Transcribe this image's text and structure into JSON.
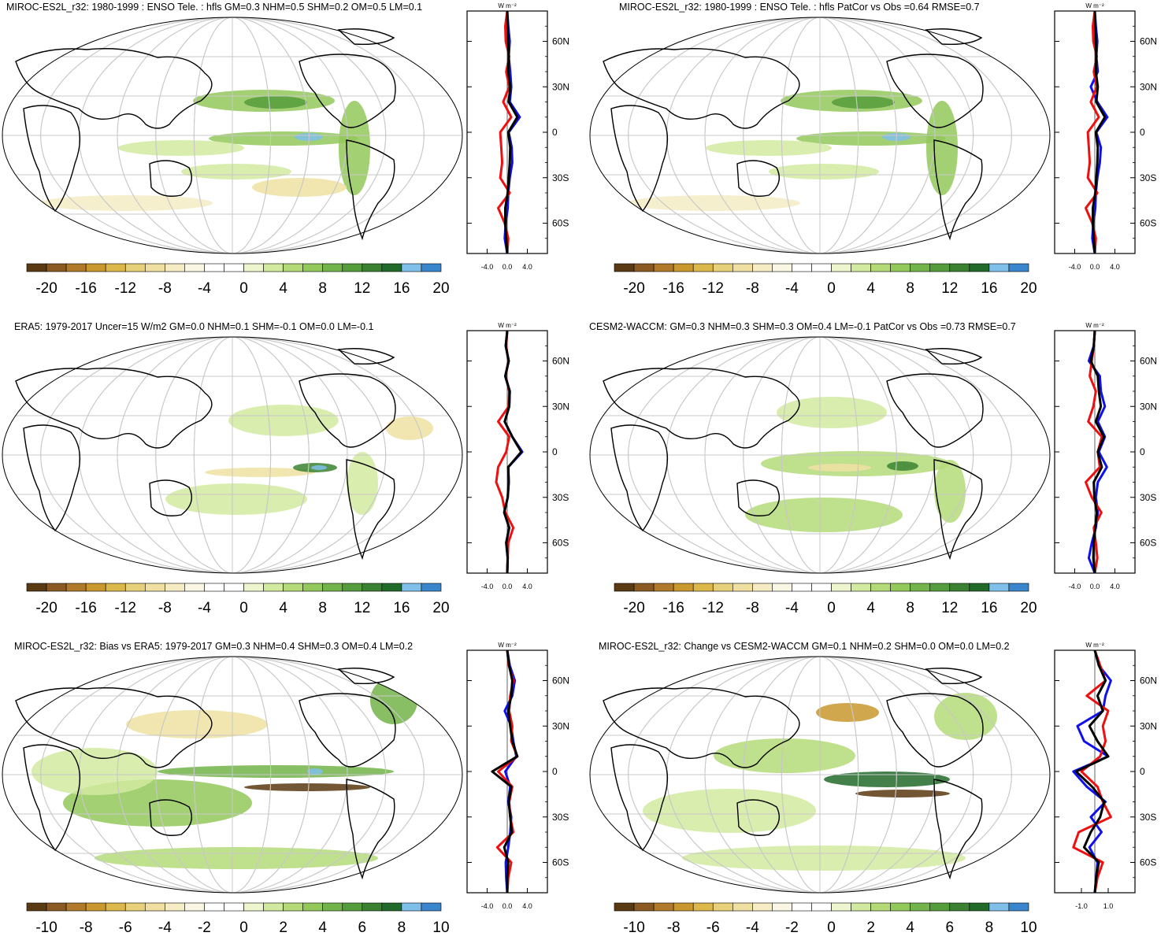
{
  "colors": {
    "palette": [
      "#5a3a12",
      "#8a5a22",
      "#b07a2a",
      "#c9982e",
      "#dcb84a",
      "#e7d07a",
      "#efe0a2",
      "#f5ecc4",
      "#faf6e4",
      "#ffffff",
      "#ffffff",
      "#edf5cf",
      "#d2eaa0",
      "#b4da78",
      "#93c85a",
      "#73b44a",
      "#559c3c",
      "#3a8232",
      "#226a2a",
      "#7ec0ea",
      "#3a86cc"
    ],
    "obs_line": "#1010ee",
    "model_line": "#ee1010",
    "diff_line": "#000000",
    "land_outline": "#000000",
    "graticule": "#c8c8c8"
  },
  "zonal_units": "W m⁻²",
  "lat_ticks": [
    "60N",
    "30N",
    "0",
    "30S",
    "60S"
  ],
  "panels": [
    {
      "id": "p1",
      "title": "MIROC-ES2L_r32: 1980-1999 : ENSO Tele. : hfls GM=0.3 NHM=0.5 SHM=0.2 OM=0.5 LM=0.1",
      "colorbar_labels": [
        "-20",
        "-16",
        "-12",
        "-8",
        "-4",
        "0",
        "4",
        "8",
        "12",
        "16",
        "20"
      ],
      "zonal_ticks": [
        "-4.0",
        "0.0",
        "4.0"
      ]
    },
    {
      "id": "p2",
      "title": "MIROC-ES2L_r32: 1980-1999 : ENSO Tele. : hfls PatCor vs Obs =0.64 RMSE=0.7",
      "colorbar_labels": [
        "-20",
        "-16",
        "-12",
        "-8",
        "-4",
        "0",
        "4",
        "8",
        "12",
        "16",
        "20"
      ],
      "zonal_ticks": [
        "-4.0",
        "0.0",
        "4.0"
      ]
    },
    {
      "id": "p3",
      "title": "ERA5: 1979-2017 Uncer=15 W/m2 GM=0.0 NHM=0.1 SHM=-0.1 OM=0.0 LM=-0.1",
      "colorbar_labels": [
        "-20",
        "-16",
        "-12",
        "-8",
        "-4",
        "0",
        "4",
        "8",
        "12",
        "16",
        "20"
      ],
      "zonal_ticks": [
        "-4.0",
        "0.0",
        "4.0"
      ]
    },
    {
      "id": "p4",
      "title": "CESM2-WACCM: GM=0.3 NHM=0.3 SHM=0.3 OM=0.4 LM=-0.1 PatCor vs Obs =0.73 RMSE=0.7",
      "colorbar_labels": [
        "-20",
        "-16",
        "-12",
        "-8",
        "-4",
        "0",
        "4",
        "8",
        "12",
        "16",
        "20"
      ],
      "zonal_ticks": [
        "-4.0",
        "0.0",
        "4.0"
      ]
    },
    {
      "id": "p5",
      "title": "MIROC-ES2L_r32: Bias vs ERA5: 1979-2017 GM=0.3 NHM=0.4 SHM=0.3 OM=0.4 LM=0.2",
      "colorbar_labels": [
        "-10",
        "-8",
        "-6",
        "-4",
        "-2",
        "0",
        "2",
        "4",
        "6",
        "8",
        "10"
      ],
      "zonal_ticks": [
        "-4.0",
        "0.0",
        "4.0"
      ]
    },
    {
      "id": "p6",
      "title": "MIROC-ES2L_r32: Change vs CESM2-WACCM GM=0.1 NHM=0.2 SHM=0.0 OM=0.0 LM=0.2",
      "colorbar_labels": [
        "-10",
        "-8",
        "-6",
        "-4",
        "-2",
        "0",
        "2",
        "4",
        "6",
        "8",
        "10"
      ],
      "zonal_ticks": [
        "-1.0",
        "1.0"
      ]
    }
  ],
  "chart_data": [
    {
      "type": "heatmap",
      "title": "MIROC-ES2L_r32: 1980-1999 : ENSO Tele. : hfls GM=0.3 NHM=0.5 SHM=0.2 OM=0.5 LM=0.1",
      "variable": "hfls",
      "units": "W m-2",
      "colorbar_range": [
        -20,
        20
      ],
      "zonal_mean": {
        "lat": [
          80,
          70,
          60,
          50,
          40,
          30,
          20,
          10,
          0,
          -10,
          -20,
          -30,
          -40,
          -50,
          -60,
          -70,
          -80
        ],
        "obs": [
          0,
          0.2,
          0.5,
          0.3,
          0.6,
          0.8,
          0.5,
          2.5,
          0.3,
          0.9,
          1.0,
          0.5,
          0.2,
          0.1,
          -0.3,
          -0.5,
          0
        ],
        "model": [
          0,
          -0.4,
          -0.3,
          0.4,
          -0.2,
          0.4,
          -0.8,
          0.8,
          -1.4,
          -1.2,
          -1.0,
          -1.4,
          0.5,
          -1.8,
          -0.5,
          0.2,
          0
        ],
        "difference": [
          0,
          0.1,
          0.2,
          0.3,
          0.2,
          0.6,
          0.3,
          2.0,
          0.2,
          0.6,
          0.5,
          0.3,
          0.1,
          -0.4,
          -0.4,
          -0.2,
          0
        ]
      }
    },
    {
      "type": "heatmap",
      "title": "MIROC-ES2L_r32: 1980-1999 : ENSO Tele. : hfls PatCor vs Obs =0.64 RMSE=0.7",
      "variable": "hfls",
      "units": "W m-2",
      "colorbar_range": [
        -20,
        20
      ],
      "zonal_mean": {
        "lat": [
          80,
          70,
          60,
          50,
          40,
          30,
          20,
          10,
          0,
          -10,
          -20,
          -30,
          -40,
          -50,
          -60,
          -70,
          -80
        ],
        "obs": [
          0,
          0.2,
          0.5,
          0.3,
          0.6,
          -0.8,
          0.5,
          2.5,
          0.3,
          1.2,
          1.0,
          0.5,
          0.2,
          0.1,
          -0.3,
          -0.5,
          0
        ],
        "model": [
          0,
          -0.4,
          -0.3,
          0.4,
          -0.2,
          0.4,
          -0.8,
          0.8,
          -1.4,
          -1.2,
          -1.0,
          -1.4,
          0.5,
          -1.8,
          -0.5,
          0.2,
          0
        ],
        "difference": [
          0,
          0.1,
          0.2,
          0.3,
          0.2,
          0.6,
          0.3,
          2.0,
          0.2,
          0.6,
          0.5,
          0.3,
          0.1,
          -0.4,
          -0.4,
          -0.2,
          0
        ]
      }
    },
    {
      "type": "heatmap",
      "title": "ERA5: 1979-2017 Uncer=15 W/m2 GM=0.0 NHM=0.1 SHM=-0.1 OM=0.0 LM=-0.1",
      "variable": "hfls",
      "units": "W m-2",
      "colorbar_range": [
        -20,
        20
      ],
      "zonal_mean": {
        "lat": [
          80,
          70,
          60,
          50,
          40,
          30,
          20,
          10,
          0,
          -10,
          -20,
          -30,
          -40,
          -50,
          -60,
          -70,
          -80
        ],
        "obs": [
          0,
          -0.3,
          0.3,
          -0.4,
          0.5,
          0.4,
          -0.5,
          1.0,
          3.0,
          0.2,
          0.3,
          0.1,
          -0.6,
          0.4,
          -0.2,
          0.1,
          0
        ],
        "model": [
          0,
          -0.2,
          0.2,
          -0.3,
          0.4,
          0.3,
          -1.8,
          0.4,
          -0.2,
          -1.8,
          -2.2,
          -1.0,
          -0.4,
          1.2,
          0.2,
          0.1,
          0
        ],
        "difference": [
          0,
          -0.3,
          0.3,
          -0.4,
          0.5,
          0.4,
          -0.5,
          1.0,
          2.8,
          0.2,
          0.3,
          0.1,
          -0.6,
          0.4,
          -0.2,
          0.1,
          0
        ]
      }
    },
    {
      "type": "heatmap",
      "title": "CESM2-WACCM: GM=0.3 NHM=0.3 SHM=0.3 OM=0.4 LM=-0.1 PatCor vs Obs =0.73 RMSE=0.7",
      "variable": "hfls",
      "units": "W m-2",
      "colorbar_range": [
        -20,
        20
      ],
      "zonal_mean": {
        "lat": [
          80,
          70,
          60,
          50,
          40,
          30,
          20,
          10,
          0,
          -10,
          -20,
          -30,
          -40,
          -50,
          -60,
          -70,
          -80
        ],
        "obs": [
          0,
          -0.2,
          -1.2,
          1.0,
          1.2,
          2.0,
          0.6,
          2.0,
          0.8,
          2.4,
          0.6,
          0.2,
          0.6,
          0.2,
          -0.6,
          -1.2,
          0
        ],
        "model": [
          0,
          -0.2,
          -0.6,
          -1.0,
          0.2,
          -0.3,
          -1.3,
          1.4,
          0.6,
          1.0,
          -1.8,
          -0.6,
          1.3,
          -0.2,
          0.2,
          0.5,
          0
        ],
        "difference": [
          0,
          -0.2,
          -0.8,
          0.6,
          0.8,
          1.2,
          0.2,
          1.8,
          0.6,
          1.4,
          -0.2,
          -0.1,
          0.4,
          0.1,
          -0.2,
          -0.3,
          0
        ]
      }
    },
    {
      "type": "heatmap",
      "title": "MIROC-ES2L_r32: Bias vs ERA5: 1979-2017 GM=0.3 NHM=0.4 SHM=0.3 OM=0.4 LM=0.2",
      "variable": "hfls",
      "units": "W m-2",
      "colorbar_range": [
        -10,
        10
      ],
      "zonal_mean": {
        "lat": [
          80,
          70,
          60,
          50,
          40,
          30,
          20,
          10,
          0,
          -10,
          -20,
          -30,
          -40,
          -50,
          -60,
          -70,
          -80
        ],
        "obs": [
          0,
          0.5,
          1.5,
          1.0,
          -0.5,
          0.8,
          1.2,
          1.8,
          -0.4,
          0.6,
          0.2,
          0.8,
          0.6,
          0.2,
          -0.3,
          -0.2,
          0
        ],
        "model": [
          0,
          0.3,
          1.2,
          0.6,
          0.4,
          1.0,
          0.8,
          2.0,
          -1.8,
          1.0,
          0.4,
          0.6,
          1.2,
          -2.0,
          0.8,
          0.2,
          0
        ],
        "difference": [
          0,
          0.4,
          1.0,
          0.8,
          0.2,
          0.6,
          1.0,
          2.0,
          -3.0,
          0.8,
          0.3,
          0.6,
          0.9,
          -0.6,
          0.2,
          0,
          0
        ]
      }
    },
    {
      "type": "heatmap",
      "title": "MIROC-ES2L_r32: Change vs CESM2-WACCM GM=0.1 NHM=0.2 SHM=0.0 OM=0.0 LM=0.2",
      "variable": "hfls",
      "units": "W m-2",
      "colorbar_range": [
        -10,
        10
      ],
      "zonal_mean": {
        "lat": [
          80,
          70,
          60,
          50,
          40,
          30,
          20,
          10,
          0,
          -10,
          -20,
          -30,
          -40,
          -50,
          -60,
          -70,
          -80
        ],
        "obs": [
          0,
          0.3,
          1.2,
          0.8,
          0.6,
          -1.3,
          -0.8,
          1.0,
          -1.6,
          -0.6,
          0.8,
          -0.3,
          0.5,
          -0.4,
          0.2,
          0.1,
          0
        ],
        "model": [
          0,
          0.4,
          0.8,
          -0.6,
          1.0,
          0.6,
          0.8,
          0.4,
          -1.0,
          0.2,
          0.6,
          1.2,
          -1.2,
          -1.6,
          0.6,
          0.2,
          0
        ],
        "difference": [
          0,
          0.3,
          0.8,
          0.2,
          0.6,
          -0.4,
          0.2,
          1.0,
          -1.4,
          -0.2,
          0.7,
          0.4,
          -0.3,
          -0.8,
          0.3,
          0.1,
          0
        ]
      }
    }
  ]
}
